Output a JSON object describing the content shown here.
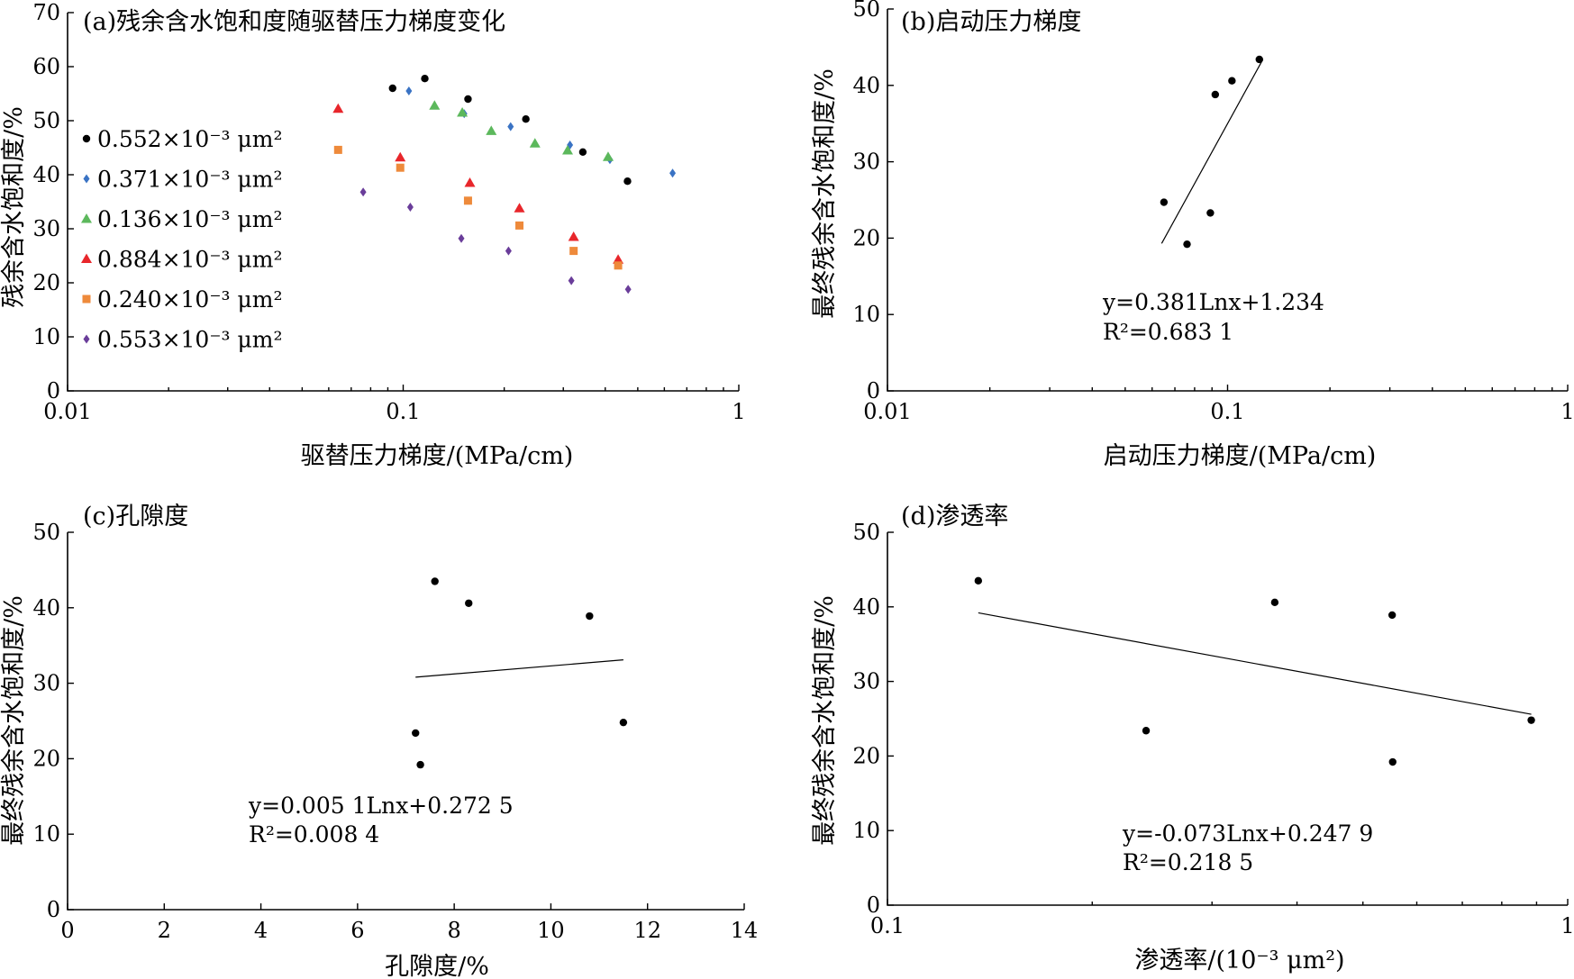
{
  "chart_data": [
    {
      "id": "a",
      "type": "scatter",
      "title": "(a)残余含水饱和度随驱替压力梯度变化",
      "xlabel": "驱替压力梯度/(MPa/cm)",
      "ylabel": "残余含水饱和度/%",
      "xscale": "log",
      "xlim": [
        0.01,
        1
      ],
      "ylim": [
        0,
        70
      ],
      "xticks": [
        0.01,
        0.1,
        1
      ],
      "xtick_labels": [
        "0.01",
        "0.1",
        "1"
      ],
      "yticks": [
        0,
        10,
        20,
        30,
        40,
        50,
        60,
        70
      ],
      "legend_position": "left",
      "series": [
        {
          "name": "0.552×10⁻³ μm²",
          "marker": "circle",
          "color": "#000000",
          "points": [
            [
              0.093,
              56
            ],
            [
              0.116,
              57.8
            ],
            [
              0.156,
              54
            ],
            [
              0.232,
              50.3
            ],
            [
              0.343,
              44.2
            ],
            [
              0.466,
              38.8
            ]
          ]
        },
        {
          "name": "0.371×10⁻³ μm²",
          "marker": "diamond",
          "color": "#3a73c4",
          "points": [
            [
              0.104,
              55.5
            ],
            [
              0.152,
              51.3
            ],
            [
              0.209,
              48.9
            ],
            [
              0.314,
              45.5
            ],
            [
              0.413,
              42.8
            ],
            [
              0.635,
              40.3
            ]
          ]
        },
        {
          "name": "0.136×10⁻³ μm²",
          "marker": "triangle",
          "color": "#5cb85c",
          "points": [
            [
              0.124,
              52.8
            ],
            [
              0.15,
              51.5
            ],
            [
              0.183,
              48.1
            ],
            [
              0.247,
              45.8
            ],
            [
              0.309,
              44.5
            ],
            [
              0.408,
              43.3
            ]
          ]
        },
        {
          "name": "0.884×10⁻³ μm²",
          "marker": "triangle",
          "color": "#e8262b",
          "points": [
            [
              0.064,
              52.2
            ],
            [
              0.098,
              43.2
            ],
            [
              0.158,
              38.5
            ],
            [
              0.222,
              33.8
            ],
            [
              0.322,
              28.5
            ],
            [
              0.437,
              24.3
            ]
          ]
        },
        {
          "name": "0.240×10⁻³ μm²",
          "marker": "square",
          "color": "#ee8a3b",
          "points": [
            [
              0.064,
              44.6
            ],
            [
              0.098,
              41.3
            ],
            [
              0.156,
              35.2
            ],
            [
              0.222,
              30.6
            ],
            [
              0.322,
              25.9
            ],
            [
              0.437,
              23.2
            ]
          ]
        },
        {
          "name": "0.553×10⁻³ μm²",
          "marker": "diamond",
          "color": "#6a3d9a",
          "points": [
            [
              0.076,
              36.8
            ],
            [
              0.105,
              34.0
            ],
            [
              0.149,
              28.2
            ],
            [
              0.206,
              25.9
            ],
            [
              0.317,
              20.4
            ],
            [
              0.468,
              18.8
            ]
          ]
        }
      ]
    },
    {
      "id": "b",
      "type": "scatter",
      "title": "(b)启动压力梯度",
      "xlabel": "启动压力梯度/(MPa/cm)",
      "ylabel": "最终残余含水饱和度/%",
      "xscale": "log",
      "xlim": [
        0.01,
        1
      ],
      "ylim": [
        0,
        50
      ],
      "xticks": [
        0.01,
        0.1,
        1
      ],
      "xtick_labels": [
        "0.01",
        "0.1",
        "1"
      ],
      "yticks": [
        0,
        10,
        20,
        30,
        40,
        50
      ],
      "points": [
        [
          0.065,
          24.7
        ],
        [
          0.076,
          19.2
        ],
        [
          0.089,
          23.3
        ],
        [
          0.092,
          38.8
        ],
        [
          0.103,
          40.6
        ],
        [
          0.124,
          43.4
        ]
      ],
      "fit_line": [
        [
          0.064,
          19.3
        ],
        [
          0.127,
          43.4
        ]
      ],
      "equation": "y=0.381Lnx+1.234",
      "r2": "R²=0.683 1"
    },
    {
      "id": "c",
      "type": "scatter",
      "title": "(c)孔隙度",
      "xlabel": "孔隙度/%",
      "ylabel": "最终残余含水饱和度/%",
      "xscale": "linear",
      "xlim": [
        0,
        14
      ],
      "ylim": [
        0,
        50
      ],
      "xticks": [
        0,
        2,
        4,
        6,
        8,
        10,
        12,
        14
      ],
      "yticks": [
        0,
        10,
        20,
        30,
        40,
        50
      ],
      "points": [
        [
          7.6,
          43.5
        ],
        [
          8.3,
          40.6
        ],
        [
          10.8,
          38.9
        ],
        [
          7.2,
          23.4
        ],
        [
          11.5,
          24.8
        ],
        [
          7.3,
          19.2
        ]
      ],
      "fit_line": [
        [
          7.2,
          30.8
        ],
        [
          11.5,
          33.1
        ]
      ],
      "equation": "y=0.005 1Lnx+0.272 5",
      "r2": "R²=0.008 4"
    },
    {
      "id": "d",
      "type": "scatter",
      "title": "(d)渗透率",
      "xlabel": "渗透率/(10⁻³ μm²)",
      "ylabel": "最终残余含水饱和度/%",
      "xscale": "log",
      "xlim": [
        0.1,
        1
      ],
      "ylim": [
        0,
        50
      ],
      "xticks": [
        0.1,
        1
      ],
      "xtick_labels": [
        "0.1",
        "1"
      ],
      "yticks": [
        0,
        10,
        20,
        30,
        40,
        50
      ],
      "points": [
        [
          0.136,
          43.5
        ],
        [
          0.24,
          23.4
        ],
        [
          0.371,
          40.6
        ],
        [
          0.552,
          38.9
        ],
        [
          0.553,
          19.2
        ],
        [
          0.884,
          24.8
        ]
      ],
      "fit_line": [
        [
          0.136,
          39.2
        ],
        [
          0.884,
          25.6
        ]
      ],
      "equation": "y=-0.073Lnx+0.247 9",
      "r2": "R²=0.218 5"
    }
  ]
}
